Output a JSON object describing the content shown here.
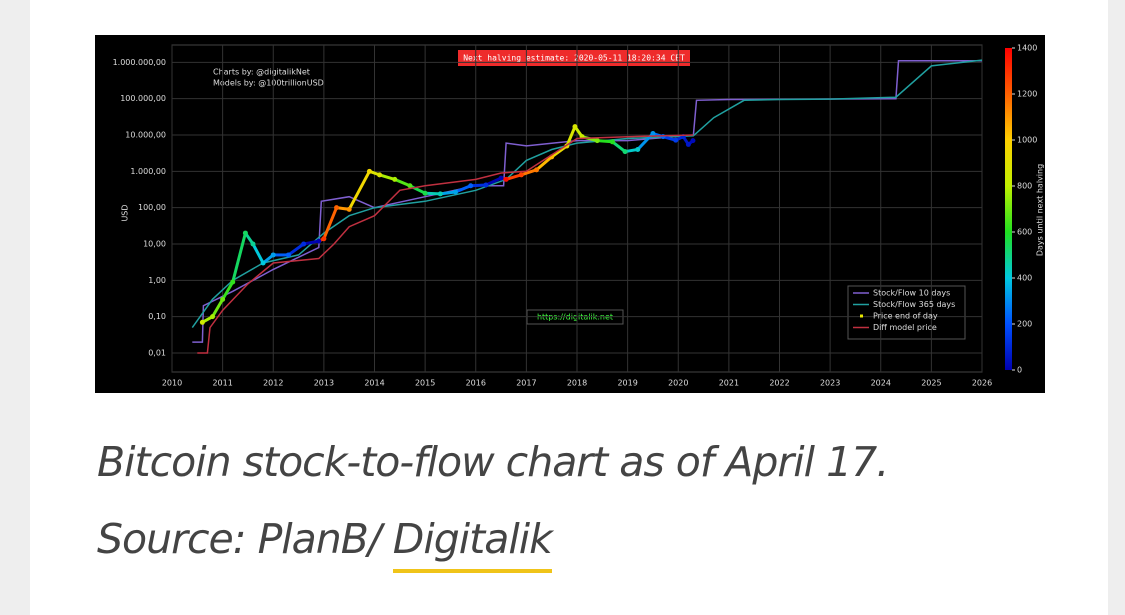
{
  "chart_data": {
    "type": "line",
    "title": "Next halving estimate: 2020-05-11 18:20:34 CET",
    "annotations": [
      "Charts by: @digitalikNet",
      "Models by: @100trillionUSD",
      "https://digitalik.net"
    ],
    "y_label": "USD",
    "colorbar_label": "Days until next halving",
    "xlim": [
      2010,
      2026
    ],
    "xticks": [
      2010,
      2011,
      2012,
      2013,
      2014,
      2015,
      2016,
      2017,
      2018,
      2019,
      2020,
      2021,
      2022,
      2023,
      2024,
      2025,
      2026
    ],
    "ylim": [
      0.003,
      3000000
    ],
    "log_y": true,
    "yticks": [
      {
        "value": 0.01,
        "label": "0,01"
      },
      {
        "value": 0.1,
        "label": "0,10"
      },
      {
        "value": 1,
        "label": "1,00"
      },
      {
        "value": 10,
        "label": "10,00"
      },
      {
        "value": 100,
        "label": "100,00"
      },
      {
        "value": 1000,
        "label": "1.000,00"
      },
      {
        "value": 10000,
        "label": "10.000,00"
      },
      {
        "value": 100000,
        "label": "100.000,00"
      },
      {
        "value": 1000000,
        "label": "1.000.000,00"
      }
    ],
    "grid": true,
    "legend": "lower right",
    "clim": [
      0,
      1400
    ],
    "cticks": [
      0,
      200,
      400,
      600,
      800,
      1000,
      1200,
      1400
    ],
    "colormap": [
      "#0000b0",
      "#0050ff",
      "#00c8e0",
      "#20e020",
      "#c0f000",
      "#ffd000",
      "#ff6000",
      "#ff0000"
    ],
    "series": [
      {
        "name": "Stock/Flow 10 days",
        "color": "#7f5fd0",
        "x": [
          2010.4,
          2010.6,
          2010.62,
          2011.2,
          2012,
          2012.9,
          2012.95,
          2013.5,
          2014,
          2015,
          2016,
          2016.55,
          2016.6,
          2017,
          2018,
          2019,
          2020.3,
          2020.36,
          2021,
          2024.3,
          2024.35,
          2026
        ],
        "values": [
          0.02,
          0.02,
          0.2,
          0.5,
          2,
          8,
          150,
          200,
          100,
          200,
          400,
          400,
          6000,
          5000,
          7000,
          7000,
          10000,
          90000,
          95000,
          100000,
          1100000,
          1100000
        ]
      },
      {
        "name": "Stock/Flow 365 days",
        "color": "#20a0a0",
        "x": [
          2010.4,
          2010.8,
          2011.2,
          2011.8,
          2012.5,
          2013,
          2013.5,
          2014,
          2015,
          2016,
          2016.6,
          2017,
          2017.5,
          2018,
          2019,
          2020.3,
          2020.7,
          2021.3,
          2022,
          2023,
          2024.3,
          2025,
          2026
        ],
        "values": [
          0.05,
          0.3,
          1,
          3,
          5,
          20,
          60,
          100,
          150,
          300,
          600,
          2000,
          4000,
          6000,
          8000,
          9500,
          30000,
          90000,
          95000,
          97000,
          110000,
          800000,
          1150000
        ]
      },
      {
        "name": "Price end of day",
        "color": "#e8e800",
        "marker": true,
        "x": [
          2010.6,
          2010.8,
          2011,
          2011.2,
          2011.45,
          2011.6,
          2011.8,
          2012,
          2012.3,
          2012.6,
          2012.9,
          2013,
          2013.25,
          2013.5,
          2013.9,
          2014.1,
          2014.4,
          2014.7,
          2015,
          2015.3,
          2015.6,
          2015.9,
          2016.2,
          2016.5,
          2016.6,
          2016.9,
          2017.2,
          2017.5,
          2017.8,
          2017.96,
          2018.1,
          2018.4,
          2018.7,
          2018.95,
          2019.2,
          2019.5,
          2019.7,
          2019.95,
          2020.1,
          2020.2,
          2020.29
        ],
        "values": [
          0.07,
          0.1,
          0.3,
          0.9,
          20,
          10,
          3,
          5,
          5,
          10,
          12,
          14,
          100,
          90,
          1000,
          800,
          600,
          400,
          250,
          240,
          270,
          400,
          420,
          650,
          600,
          800,
          1100,
          2500,
          5000,
          17000,
          9000,
          7000,
          6500,
          3500,
          4000,
          11000,
          9000,
          7200,
          9000,
          5500,
          7000
        ],
        "days": [
          843,
          770,
          697,
          624,
          533,
          478,
          405,
          332,
          223,
          113,
          4,
          1285,
          1194,
          1103,
          957,
          884,
          774,
          665,
          555,
          445,
          336,
          226,
          117,
          7,
          1372,
          1263,
          1153,
          1044,
          934,
          876,
          825,
          715,
          606,
          515,
          423,
          314,
          241,
          150,
          95,
          58,
          26
        ]
      },
      {
        "name": "Diff model price",
        "color": "#c03040",
        "x": [
          2010.5,
          2010.7,
          2010.75,
          2011,
          2011.5,
          2012,
          2012.9,
          2013.2,
          2013.5,
          2014,
          2014.5,
          2015,
          2016,
          2016.5,
          2017,
          2018,
          2019,
          2020.3
        ],
        "values": [
          0.01,
          0.01,
          0.05,
          0.15,
          0.8,
          3,
          4,
          10,
          30,
          60,
          300,
          400,
          600,
          900,
          1000,
          8000,
          9000,
          10000
        ]
      }
    ]
  },
  "caption": {
    "text": "Bitcoin stock-to-flow chart as of April 17.",
    "source": "Source: PlanB/",
    "link": "Digitalik"
  }
}
